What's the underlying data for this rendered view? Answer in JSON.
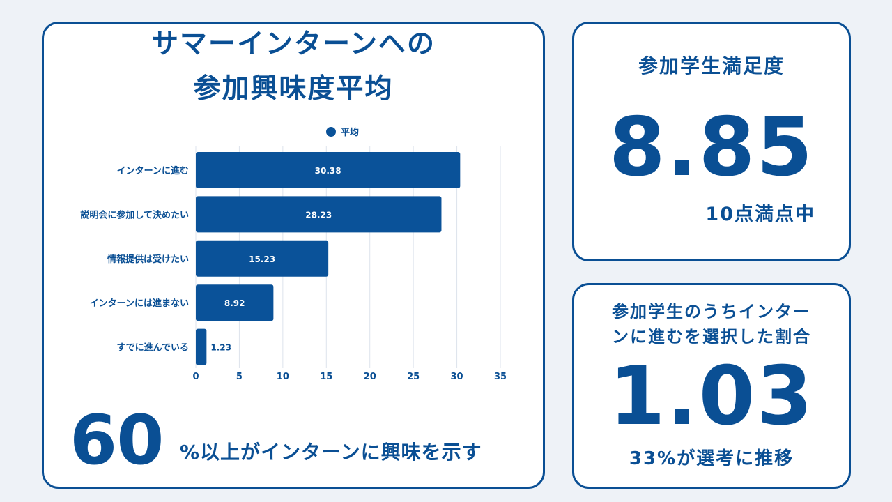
{
  "left_card": {
    "title_line1": "サマーインターンへの",
    "title_line2": "参加興味度平均",
    "big_number": "60",
    "big_caption": "%以上がインターンに興味を示す"
  },
  "satisfaction": {
    "label": "参加学生満足度",
    "value": "8.85",
    "sub": "10点満点中"
  },
  "ratio": {
    "label_line1": "参加学生のうちインター",
    "label_line2": "ンに進むを選択した割合",
    "value": "1.03",
    "sub": "33%が選考に推移"
  },
  "chart_data": {
    "type": "bar",
    "orientation": "horizontal",
    "legend_position": "top",
    "categories": [
      "インターンに進む",
      "説明会に参加して決めたい",
      "情報提供は受けたい",
      "インターンには進まない",
      "すでに進んでいる"
    ],
    "series": [
      {
        "name": "平均",
        "values": [
          30.38,
          28.23,
          15.23,
          8.92,
          1.23
        ],
        "labels": [
          "30.38",
          "28.23",
          "15.23",
          "8.92",
          "1.23"
        ]
      }
    ],
    "xlim": [
      0,
      35
    ],
    "xticks": [
      "0",
      "5",
      "10",
      "15",
      "20",
      "25",
      "30",
      "35"
    ],
    "grid": true,
    "colors": {
      "bar": "#0a5299",
      "grid": "#dde3ec",
      "text": "#0a4f94"
    }
  }
}
